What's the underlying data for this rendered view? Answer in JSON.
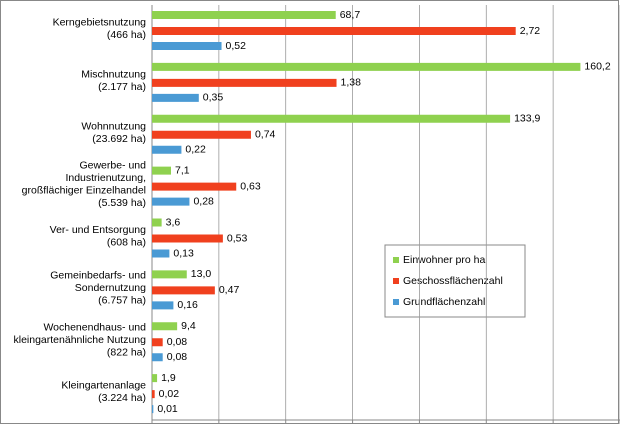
{
  "chart_data": {
    "type": "bar",
    "orientation": "horizontal",
    "categories": [
      [
        "Kerngebietsnutzung",
        "(466 ha)"
      ],
      [
        "Mischnutzung",
        "(2.177 ha)"
      ],
      [
        "Wohnnutzung",
        "(23.692 ha)"
      ],
      [
        "Gewerbe- und",
        "Industrienutzung,",
        "großflächiger Einzelhandel",
        "(5.539 ha)"
      ],
      [
        "Ver- und Entsorgung",
        "(608 ha)"
      ],
      [
        "Gemeinbedarfs- und",
        "Sondernutzung",
        "(6.757 ha)"
      ],
      [
        "Wochenendhaus- und",
        "kleingartenähnliche Nutzung",
        "(822 ha)"
      ],
      [
        "Kleingartenanlage",
        "(3.224 ha)"
      ]
    ],
    "series": [
      {
        "name": "Einwohner pro ha",
        "color": "#8fd14f",
        "axis": "x2",
        "values": [
          68.7,
          160.2,
          133.9,
          7.1,
          3.6,
          13.0,
          9.4,
          1.9
        ],
        "value_labels": [
          "68,7",
          "160,2",
          "133,9",
          "7,1",
          "3,6",
          "13,0",
          "9,4",
          "1,9"
        ]
      },
      {
        "name": "Geschossflächenzahl",
        "color": "#f0401e",
        "values": [
          2.72,
          1.38,
          0.74,
          0.63,
          0.53,
          0.47,
          0.08,
          0.02
        ],
        "value_labels": [
          "2,72",
          "1,38",
          "0,74",
          "0,63",
          "0,53",
          "0,47",
          "0,08",
          "0,02"
        ]
      },
      {
        "name": "Grundflächenzahl",
        "color": "#4a9ad4",
        "values": [
          0.52,
          0.35,
          0.22,
          0.28,
          0.13,
          0.16,
          0.08,
          0.01
        ],
        "value_labels": [
          "0,52",
          "0,35",
          "0,22",
          "0,28",
          "0,13",
          "0,16",
          "0,08",
          "0,01"
        ]
      }
    ],
    "xlim": [
      0,
      3.5
    ],
    "xticks": [
      0,
      0.5,
      1,
      1.5,
      2,
      2.5,
      3,
      3.5
    ],
    "x2lim": [
      0,
      175
    ],
    "grid": true
  }
}
